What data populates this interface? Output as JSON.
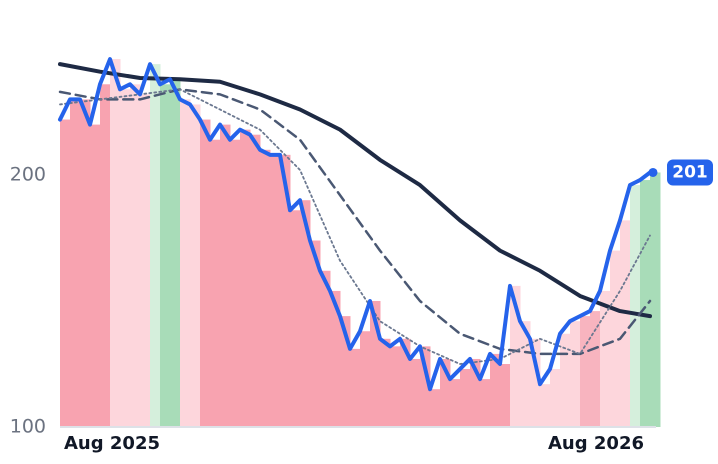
{
  "chart_data": {
    "type": "line",
    "xlim": [
      0,
      14.9
    ],
    "ylim": [
      100,
      265
    ],
    "xticks": [
      {
        "value": 1.3,
        "label": "Aug 2025"
      },
      {
        "value": 13.4,
        "label": "Aug 2026"
      }
    ],
    "yticks": [
      100,
      200
    ],
    "grid": false,
    "series": [
      {
        "color": "#1e2a44",
        "style": "solid",
        "width": 4,
        "x": [
          0,
          1,
          2,
          3,
          4,
          5,
          6,
          7,
          8,
          9,
          10,
          11,
          12,
          13,
          14,
          14.75
        ],
        "values": [
          244,
          241,
          238.5,
          238,
          237,
          232,
          226,
          218,
          206,
          196,
          182,
          170,
          162,
          152,
          146,
          144
        ]
      },
      {
        "color": "#4a5873",
        "style": "dashed",
        "width": 2.5,
        "x": [
          0,
          1,
          2,
          3,
          4,
          5,
          6,
          7,
          8,
          9,
          10,
          11,
          12,
          13,
          14,
          14.75
        ],
        "values": [
          233,
          230,
          230,
          234,
          232,
          226,
          214,
          192,
          170,
          150,
          137,
          131,
          129,
          129,
          135,
          150
        ]
      },
      {
        "color": "#6b7890",
        "style": "dotted",
        "width": 1.8,
        "x": [
          0,
          1,
          2,
          3,
          4,
          5,
          6,
          7,
          8,
          9,
          10,
          11,
          12,
          13,
          14,
          14.75
        ],
        "values": [
          228,
          230,
          232,
          234,
          226,
          218,
          202,
          166,
          142,
          132,
          125,
          127,
          135,
          129,
          154,
          176
        ]
      },
      {
        "color": "#2563eb",
        "style": "solid",
        "width": 4,
        "value_label": "201",
        "x": [
          0,
          0.25,
          0.5,
          0.75,
          1,
          1.25,
          1.5,
          1.75,
          2,
          2.25,
          2.5,
          2.75,
          3,
          3.25,
          3.5,
          3.75,
          4,
          4.25,
          4.5,
          4.75,
          5,
          5.25,
          5.5,
          5.75,
          6,
          6.25,
          6.5,
          6.75,
          7,
          7.25,
          7.5,
          7.75,
          8,
          8.25,
          8.5,
          8.75,
          9,
          9.25,
          9.5,
          9.75,
          10,
          10.25,
          10.5,
          10.75,
          11,
          11.25,
          11.5,
          11.75,
          12,
          12.25,
          12.5,
          12.75,
          13,
          13.25,
          13.5,
          13.75,
          14,
          14.25,
          14.5,
          14.75
        ],
        "values": [
          222,
          230,
          230,
          220,
          236,
          246,
          234,
          236,
          232,
          244,
          236,
          238,
          230,
          228,
          222,
          214,
          220,
          214,
          218,
          216,
          210,
          208,
          208,
          186,
          190,
          174,
          162,
          154,
          144,
          131,
          138,
          150,
          135,
          132,
          135,
          127,
          132,
          115,
          127,
          119,
          123,
          127,
          119,
          129,
          125,
          156,
          142,
          135,
          117,
          123,
          137,
          142,
          144,
          146,
          154,
          170,
          182,
          196,
          198,
          201
        ],
        "fill_colors": [
          "#f8a3b0",
          "#f8a3b0",
          "#f8a3b0",
          "#f8a3b0",
          "#f8a3b0",
          "#fdd6dc",
          "#fdd6dc",
          "#fdd6dc",
          "#fdd6dc",
          "#d5efdc",
          "#a8dcb8",
          "#a8dcb8",
          "#fdd6dc",
          "#fdd6dc",
          "#f8a3b0",
          "#f8a3b0",
          "#f8a3b0",
          "#f8a3b0",
          "#f8a3b0",
          "#f8a3b0",
          "#f8a3b0",
          "#f8a3b0",
          "#f8a3b0",
          "#f8a3b0",
          "#f8a3b0",
          "#f8a3b0",
          "#f8a3b0",
          "#f8a3b0",
          "#f8a3b0",
          "#f8a3b0",
          "#f8a3b0",
          "#f8a3b0",
          "#f8a3b0",
          "#f8a3b0",
          "#f8a3b0",
          "#f8a3b0",
          "#f8a3b0",
          "#f8a3b0",
          "#f8a3b0",
          "#f8a3b0",
          "#f8a3b0",
          "#f8a3b0",
          "#f8a3b0",
          "#f8a3b0",
          "#f8a3b0",
          "#fdd6dc",
          "#fdd6dc",
          "#fdd6dc",
          "#fdd6dc",
          "#fdd6dc",
          "#fdd6dc",
          "#fdd6dc",
          "#f8b4bf",
          "#f8b4bf",
          "#fdd6dc",
          "#fdd6dc",
          "#fdd6dc",
          "#d5efdc",
          "#a8dcb8",
          "#a8dcb8"
        ]
      }
    ]
  }
}
